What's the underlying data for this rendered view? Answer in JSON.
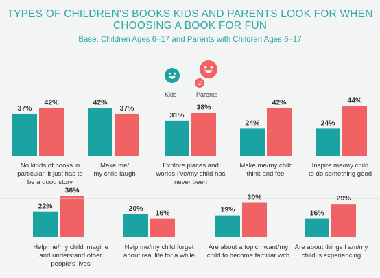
{
  "title_lines": [
    "TYPES OF CHILDREN'S BOOKS KIDS AND PARENTS LOOK FOR WHEN",
    "CHOOSING A BOOK FOR FUN"
  ],
  "subtitle": "Base: Children Ages 6–17 and Parents with Children Ages 6–17",
  "colors": {
    "kids": "#1aa3a0",
    "parents": "#f06264",
    "title": "#2eaaa7"
  },
  "legend": {
    "kids": {
      "label": "Kids",
      "icon": "smiley-kid-icon"
    },
    "parents": {
      "label": "Parents",
      "icon": "smiley-parents-icon"
    }
  },
  "chart_data": {
    "type": "bar",
    "title": "TYPES OF CHILDREN'S BOOKS KIDS AND PARENTS LOOK FOR WHEN CHOOSING A BOOK FOR FUN",
    "subtitle": "Base: Children Ages 6–17 and Parents with Children Ages 6–17",
    "unit": "%",
    "ylim": [
      0,
      45
    ],
    "categories": [
      [
        "No kinds of books in",
        "particular, it just has to",
        "be a good story"
      ],
      [
        "Make me/",
        "my child laugh"
      ],
      [
        "Explore places and",
        "worlds I've/my child has",
        "never been"
      ],
      [
        "Make me/my child",
        "think and feel"
      ],
      [
        "Inspire me/my child",
        "to do something good"
      ],
      [
        "Help me/my child imagine",
        "and understand other",
        "people's lives"
      ],
      [
        "Help me/my child forget",
        "about real life for a while"
      ],
      [
        "Are about a topic I want/my",
        "child to become familiar with"
      ],
      [
        "Are about things I am/my",
        "child is experiencing"
      ]
    ],
    "series": [
      {
        "name": "Kids",
        "values": [
          37,
          42,
          31,
          24,
          24,
          22,
          20,
          19,
          16
        ],
        "labels": [
          "37%",
          "42%",
          "31%",
          "24%",
          "24%",
          "22%",
          "20%",
          "19%",
          "16%"
        ]
      },
      {
        "name": "Parents",
        "values": [
          42,
          37,
          38,
          42,
          44,
          36,
          16,
          30,
          29
        ],
        "labels": [
          "42%",
          "37%",
          "38%",
          "42%",
          "44%",
          "36%",
          "16%",
          "30%",
          "29%"
        ]
      }
    ]
  }
}
